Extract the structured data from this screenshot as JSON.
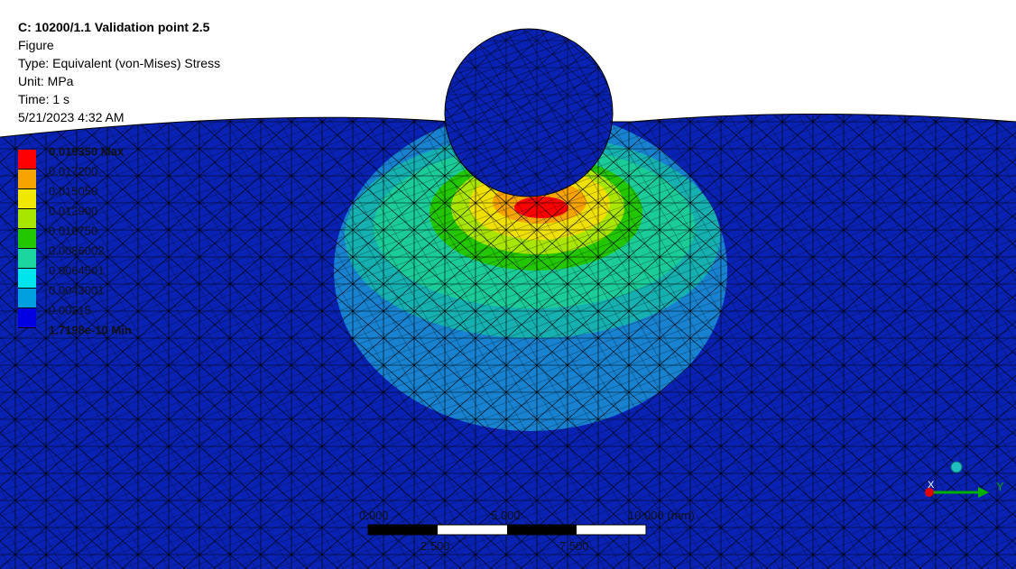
{
  "info": {
    "title": "C: 10200/1.1 Validation point 2.5",
    "figure": "Figure",
    "type": "Type: Equivalent (von-Mises) Stress",
    "unit": "Unit: MPa",
    "time": "Time: 1 s",
    "date": "5/21/2023 4:32 AM"
  },
  "legend": {
    "max_label": "0.019350 Max",
    "min_label": "1.7198e-10 Min",
    "labels": [
      "0.019350 Max",
      "0.017200",
      "0.015050",
      "0.012900",
      "0.010750",
      "0.0086002",
      "0.0064501",
      "0.0043001",
      "0.00215",
      "1.7198e-10 Min"
    ],
    "colors": [
      "#ff0000",
      "#f7a400",
      "#f0e800",
      "#a8e600",
      "#22c700",
      "#1cd6a0",
      "#00e4ee",
      "#00a0e0",
      "#0000e0"
    ]
  },
  "scale_bar": {
    "top_labels": [
      "0.000",
      "5.000",
      "10.000 (mm)"
    ],
    "bottom_labels": [
      "2.500",
      "7.500"
    ]
  },
  "triad": {
    "y_label": "Y",
    "x_label": "X",
    "colors": {
      "y": "#00b000",
      "x": "#e00000",
      "z": "#00c0c0"
    }
  },
  "model_colors": {
    "background": "#ffffff",
    "base": "#0a22b4",
    "mesh": "#000000"
  }
}
